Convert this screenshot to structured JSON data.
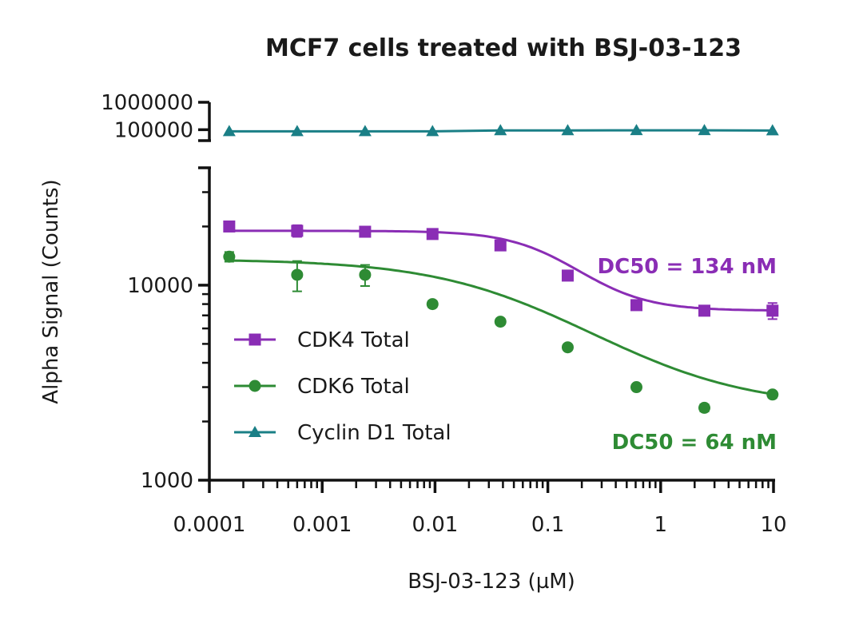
{
  "chart_data": {
    "type": "line",
    "title": "MCF7 cells treated with BSJ-03-123",
    "xlabel": "BSJ-03-123 (µM)",
    "ylabel": "Alpha Signal (Counts)",
    "xscale": "log",
    "yscale": "log",
    "xlim": [
      0.0001,
      10
    ],
    "ylim_main": [
      1000,
      40000
    ],
    "ylim_top": [
      40000,
      1000000
    ],
    "x_tick_labels": [
      "0.0001",
      "0.001",
      "0.01",
      "0.1",
      "1",
      "10"
    ],
    "x_tick_values": [
      0.0001,
      0.001,
      0.01,
      0.1,
      1,
      10
    ],
    "y_tick_labels_main": [
      "1000",
      "10000"
    ],
    "y_tick_values_main": [
      1000,
      10000
    ],
    "y_tick_labels_top": [
      "1000000",
      "100000"
    ],
    "y_tick_values_top": [
      1000000,
      100000
    ],
    "x": [
      0.00015,
      0.0006,
      0.0024,
      0.0095,
      0.038,
      0.15,
      0.61,
      2.44,
      9.8
    ],
    "series": [
      {
        "name": "CDK4 Total",
        "color": "#8a2db5",
        "marker": "square",
        "values": [
          20000,
          19000,
          18800,
          18300,
          16000,
          11200,
          7900,
          7400,
          7400
        ],
        "error": [
          900,
          1300,
          900,
          500,
          500,
          400,
          400,
          350,
          700
        ],
        "fit": {
          "top": 19000,
          "bottom": 7400,
          "ec50": 0.134,
          "hill": 1.4
        }
      },
      {
        "name": "CDK6 Total",
        "color": "#2e8b34",
        "marker": "circle",
        "values": [
          14000,
          11300,
          11300,
          8000,
          6500,
          4800,
          3000,
          2350,
          2750
        ],
        "error": [
          800,
          2000,
          1400,
          300,
          200,
          150,
          100,
          100,
          100
        ],
        "fit": {
          "top": 13600,
          "bottom": 2350,
          "ec50": 0.064,
          "hill": 0.65
        }
      },
      {
        "name": "Cyclin D1 Total",
        "color": "#1a7f86",
        "marker": "triangle",
        "values": [
          87000,
          87000,
          87000,
          87000,
          94000,
          94000,
          95000,
          95000,
          93000
        ],
        "error": [
          0,
          0,
          0,
          0,
          0,
          0,
          0,
          0,
          0
        ]
      }
    ],
    "annotations": [
      {
        "text": "DC50 = 134 nM",
        "color": "#8a2db5"
      },
      {
        "text": "DC50 = 64 nM",
        "color": "#2e8b34"
      }
    ],
    "legend_position": "left-middle"
  }
}
